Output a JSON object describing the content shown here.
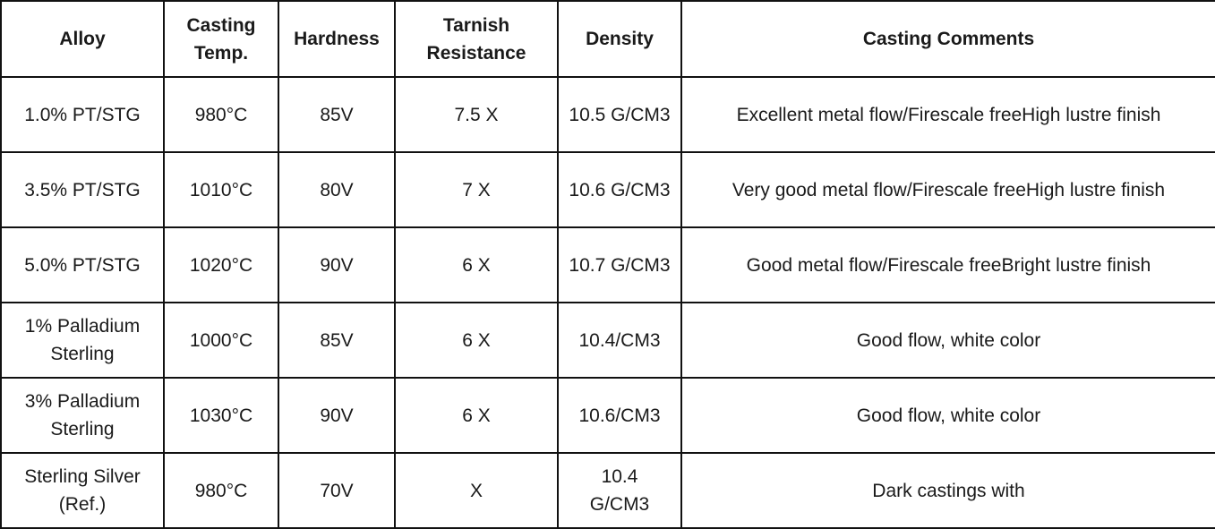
{
  "table": {
    "headers": [
      "Alloy",
      "Casting\nTemp.",
      "Hardness",
      "Tarnish\nResistance",
      "Density",
      "Casting Comments"
    ],
    "rows": [
      {
        "alloy": "1.0% PT/STG",
        "casting_temp": "980°C",
        "hardness": "85V",
        "tarnish_resistance": "7.5 X",
        "density": "10.5 G/CM3",
        "casting_comments": "Excellent metal flow/Firescale freeHigh lustre finish"
      },
      {
        "alloy": "3.5% PT/STG",
        "casting_temp": "1010°C",
        "hardness": "80V",
        "tarnish_resistance": "7 X",
        "density": "10.6 G/CM3",
        "casting_comments": "Very good metal flow/Firescale freeHigh lustre finish"
      },
      {
        "alloy": "5.0% PT/STG",
        "casting_temp": "1020°C",
        "hardness": "90V",
        "tarnish_resistance": "6 X",
        "density": "10.7 G/CM3",
        "casting_comments": "Good metal flow/Firescale freeBright lustre finish"
      },
      {
        "alloy": "1% Palladium\nSterling",
        "casting_temp": "1000°C",
        "hardness": "85V",
        "tarnish_resistance": "6 X",
        "density": "10.4/CM3",
        "casting_comments": "Good flow, white color"
      },
      {
        "alloy": "3% Palladium\nSterling",
        "casting_temp": "1030°C",
        "hardness": "90V",
        "tarnish_resistance": "6 X",
        "density": "10.6/CM3",
        "casting_comments": "Good flow, white color"
      },
      {
        "alloy": "Sterling Silver\n(Ref.)",
        "casting_temp": "980°C",
        "hardness": "70V",
        "tarnish_resistance": "X",
        "density": "10.4\nG/CM3",
        "casting_comments": "Dark castings with"
      }
    ]
  }
}
